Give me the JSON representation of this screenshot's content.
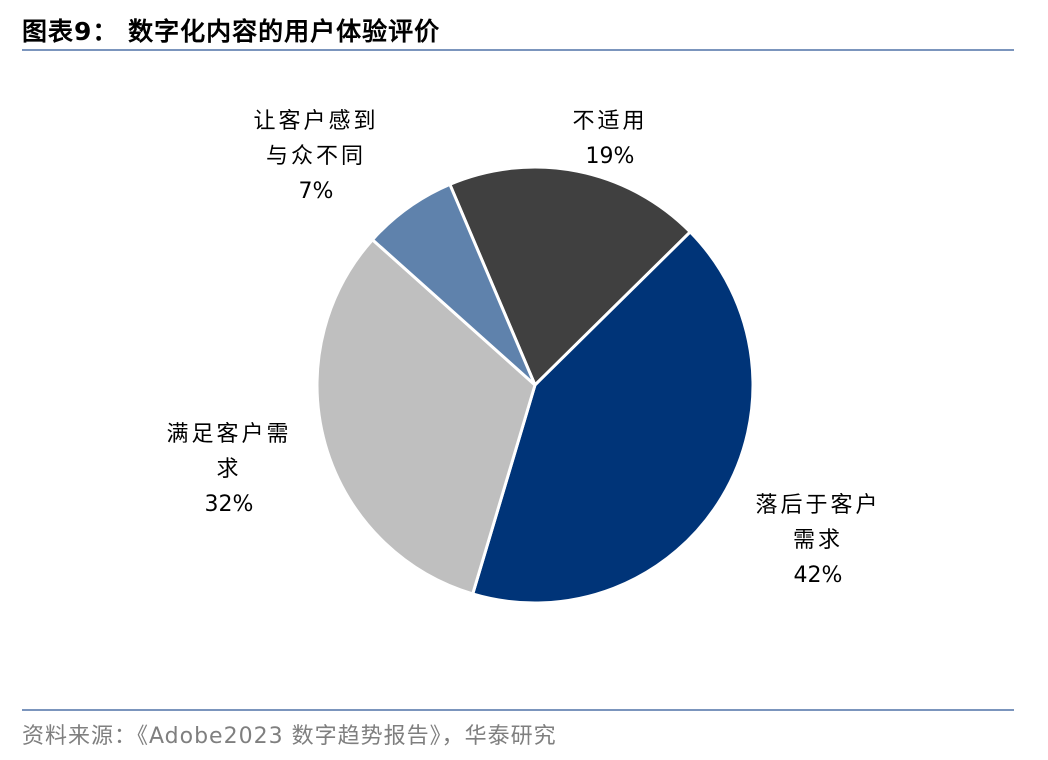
{
  "title": "图表9： 数字化内容的用户体验评价",
  "source": "资料来源：《Adobe2023 数字趋势报告》，华泰研究",
  "chart_data": {
    "type": "pie",
    "title": "图表9： 数字化内容的用户体验评价",
    "slices": [
      {
        "label_lines": [
          "不适用"
        ],
        "value": 19,
        "value_label": "19%",
        "color": "#404040"
      },
      {
        "label_lines": [
          "落后于客户",
          "需求"
        ],
        "value": 42,
        "value_label": "42%",
        "color": "#003478"
      },
      {
        "label_lines": [
          "满足客户需",
          "求"
        ],
        "value": 32,
        "value_label": "32%",
        "color": "#bfbfbf"
      },
      {
        "label_lines": [
          "让客户感到",
          "与众不同"
        ],
        "value": 7,
        "value_label": "7%",
        "color": "#5f82ac"
      }
    ]
  }
}
